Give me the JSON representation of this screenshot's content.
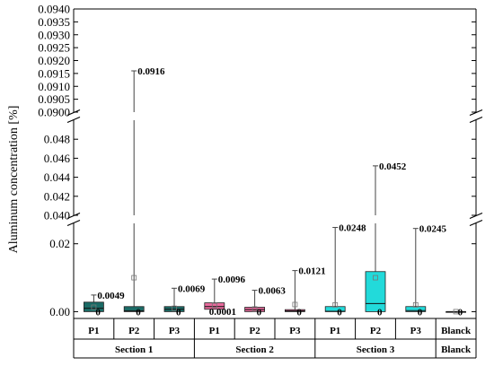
{
  "chart_data": {
    "type": "box",
    "ylabel": "Aluminum concentration [%]",
    "broken_axis": true,
    "y_segments": [
      {
        "range": [
          0.09,
          0.094
        ],
        "ticks": [
          "0.0900",
          "0.0905",
          "0.0910",
          "0.0915",
          "0.0920",
          "0.0925",
          "0.0930",
          "0.0935",
          "0.0940"
        ],
        "tick_values": [
          0.09,
          0.0905,
          0.091,
          0.0915,
          0.092,
          0.0925,
          0.093,
          0.0935,
          0.094
        ]
      },
      {
        "range": [
          0.04,
          0.05
        ],
        "ticks": [
          "0.040",
          "0.042",
          "0.044",
          "0.046",
          "0.048"
        ],
        "tick_values": [
          0.04,
          0.042,
          0.044,
          0.046,
          0.048
        ]
      },
      {
        "range": [
          -0.002,
          0.026
        ],
        "ticks": [
          "0.00",
          "0.02"
        ],
        "tick_values": [
          0.0,
          0.02
        ]
      }
    ],
    "categories": [
      "P1",
      "P2",
      "P3",
      "P1",
      "P2",
      "P3",
      "P1",
      "P2",
      "P3",
      "Blanck"
    ],
    "groups": [
      {
        "label": "Section 1",
        "span": [
          0,
          2
        ]
      },
      {
        "label": "Section 2",
        "span": [
          3,
          5
        ]
      },
      {
        "label": "Section 3",
        "span": [
          6,
          8
        ]
      },
      {
        "label": "Blanck",
        "span": [
          9,
          9
        ]
      }
    ],
    "boxes": [
      {
        "q1": 0.0,
        "median": 0.001,
        "q3": 0.0028,
        "mean": 0.0013,
        "min": 0,
        "max": 0.0049,
        "max_label": "0.0049",
        "min_label": "0",
        "color": "#1b6b66"
      },
      {
        "q1": 0.0,
        "median": 0.0002,
        "q3": 0.0015,
        "mean": 0.01,
        "min": 0,
        "max": 0.0916,
        "max_label": "0.0916",
        "min_label": "0",
        "color": "#1b6b66"
      },
      {
        "q1": 0.0,
        "median": 0.0007,
        "q3": 0.0015,
        "mean": 0.001,
        "min": 0,
        "max": 0.0069,
        "max_label": "0.0069",
        "min_label": "0",
        "color": "#1b6b66"
      },
      {
        "q1": 0.0007,
        "median": 0.0015,
        "q3": 0.0026,
        "mean": 0.0018,
        "min": 0.0001,
        "max": 0.0096,
        "max_label": "0.0096",
        "min_label": "0.0001",
        "color": "#e86a9c"
      },
      {
        "q1": 0.0,
        "median": 0.0006,
        "q3": 0.0013,
        "mean": 0.0008,
        "min": 0,
        "max": 0.0063,
        "max_label": "0.0063",
        "min_label": "0",
        "color": "#e86a9c"
      },
      {
        "q1": 0.0,
        "median": 0.0002,
        "q3": 0.0006,
        "mean": 0.0021,
        "min": 0,
        "max": 0.0121,
        "max_label": "0.0121",
        "min_label": "0",
        "color": "#e86a9c"
      },
      {
        "q1": 0.0,
        "median": 0.0001,
        "q3": 0.0015,
        "mean": 0.002,
        "min": 0,
        "max": 0.0248,
        "max_label": "0.0248",
        "min_label": "0",
        "color": "#22dada"
      },
      {
        "q1": 0.0,
        "median": 0.0024,
        "q3": 0.0118,
        "mean": 0.01,
        "min": 0,
        "max": 0.0452,
        "max_label": "0.0452",
        "min_label": "0",
        "color": "#22dada"
      },
      {
        "q1": 0.0,
        "median": 0.0003,
        "q3": 0.0015,
        "mean": 0.002,
        "min": 0,
        "max": 0.0245,
        "max_label": "0.0245",
        "min_label": "0",
        "color": "#22dada"
      },
      {
        "q1": 0.0,
        "median": 0.0,
        "q3": 0.0,
        "mean": 0.0,
        "min": 0,
        "max": 0.0,
        "max_label": "",
        "min_label": "0",
        "color": "#888888"
      }
    ]
  }
}
